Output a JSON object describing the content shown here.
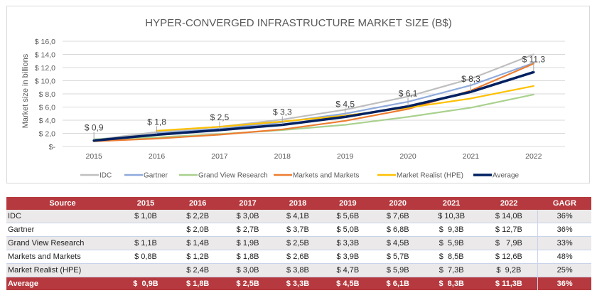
{
  "chart_data": {
    "type": "line",
    "title": "HYPER-CONVERGED INFRASTRUCTURE  MARKET SIZE (B$)",
    "xlabel": "",
    "ylabel": "Market size in billions",
    "x": [
      "2015",
      "2016",
      "2017",
      "2018",
      "2019",
      "2020",
      "2021",
      "2022"
    ],
    "ylim": [
      0,
      16
    ],
    "yticks": [
      0,
      2,
      4,
      6,
      8,
      10,
      12,
      14,
      16
    ],
    "ytick_labels": [
      "$-",
      "$ 2,0",
      "$ 4,0",
      "$ 6,0",
      "$ 8,0",
      "$ 10,0",
      "$ 12,0",
      "$ 14,0",
      "$ 16,0"
    ],
    "grid": true,
    "legend_position": "bottom",
    "series": [
      {
        "name": "IDC",
        "color": "#bfbfbf",
        "values": [
          1.0,
          2.2,
          3.0,
          4.1,
          5.6,
          7.6,
          10.3,
          14.0
        ]
      },
      {
        "name": "Gartner",
        "color": "#8faadc",
        "values": [
          null,
          2.0,
          2.7,
          3.7,
          5.0,
          6.8,
          9.3,
          12.7
        ]
      },
      {
        "name": "Grand View Research",
        "color": "#a9d18e",
        "values": [
          1.1,
          1.4,
          1.9,
          2.5,
          3.3,
          4.5,
          5.9,
          7.9
        ]
      },
      {
        "name": "Markets and Markets",
        "color": "#ed7d31",
        "values": [
          0.8,
          1.2,
          1.8,
          2.6,
          3.9,
          5.7,
          8.5,
          12.6
        ]
      },
      {
        "name": "Market Realist (HPE)",
        "color": "#ffc000",
        "values": [
          null,
          2.4,
          3.0,
          3.8,
          4.7,
          5.9,
          7.3,
          9.2
        ]
      },
      {
        "name": "Average",
        "color": "#002060",
        "values": [
          0.9,
          1.8,
          2.5,
          3.3,
          4.5,
          6.1,
          8.3,
          11.3
        ]
      }
    ],
    "data_labels": [
      "$ 0,9",
      "$ 1,8",
      "$ 2,5",
      "$ 3,3",
      "$ 4,5",
      "$ 6,1",
      "$ 8,3",
      "$ 11,3"
    ]
  },
  "table": {
    "headers": [
      "Source",
      "2015",
      "2016",
      "2017",
      "2018",
      "2019",
      "2020",
      "2021",
      "2022",
      "GAGR"
    ],
    "rows": [
      [
        "IDC",
        "$ 1,0B",
        "$ 2,2B",
        "$ 3,0B",
        "$ 4,1B",
        "$ 5,6B",
        "$ 7,6B",
        "$ 10,3B",
        "$ 14,0B",
        "36%"
      ],
      [
        "Gartner",
        "",
        "$ 2,0B",
        "$ 2,7B",
        "$ 3,7B",
        "$ 5,0B",
        "$ 6,8B",
        "$  9,3B",
        "$ 12,7B",
        "36%"
      ],
      [
        "Grand View Research",
        "$ 1,1B",
        "$ 1,4B",
        "$ 1,9B",
        "$ 2,5B",
        "$ 3,3B",
        "$ 4,5B",
        "$  5,9B",
        "$   7,9B",
        "33%"
      ],
      [
        "Markets and Markets",
        "$ 0,8B",
        "$ 1,2B",
        "$ 1,8B",
        "$ 2,6B",
        "$ 3,9B",
        "$ 5,7B",
        "$  8,5B",
        "$ 12,6B",
        "48%"
      ],
      [
        "Market Realist (HPE)",
        "",
        "$ 2,4B",
        "$ 3,0B",
        "$ 3,8B",
        "$ 4,7B",
        "$ 5,9B",
        "$  7,3B",
        "$  9,2B",
        "25%"
      ],
      [
        "Average",
        "$  0,9B",
        "$ 1,8B",
        "$ 2,5B",
        "$ 3,3B",
        "$ 4,5B",
        "$ 6,1B",
        "$  8,3B",
        "$ 11,3B",
        "36%"
      ]
    ]
  }
}
